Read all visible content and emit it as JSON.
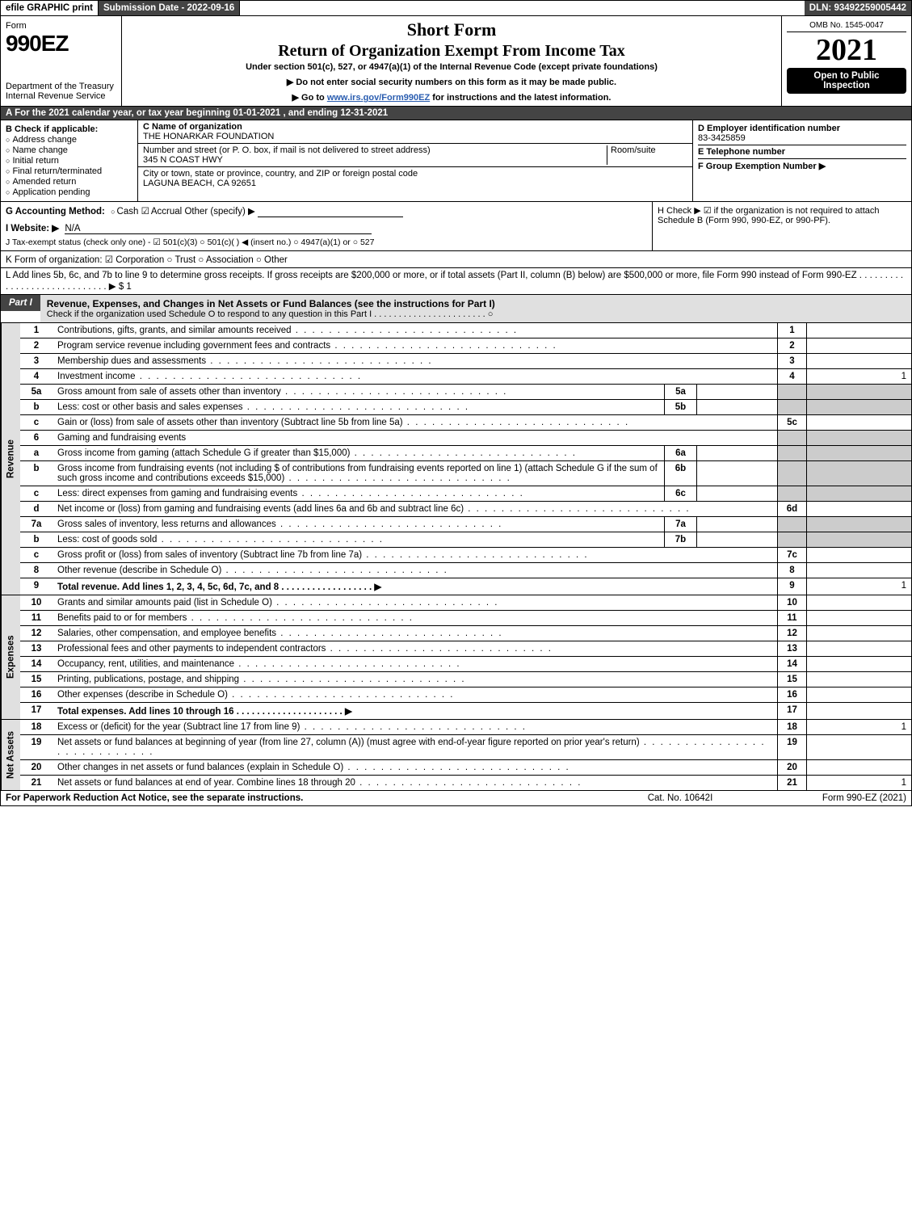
{
  "topbar": {
    "efile": "efile GRAPHIC print",
    "submission": "Submission Date - 2022-09-16",
    "dln": "DLN: 93492259005442"
  },
  "header": {
    "form_label": "Form",
    "form_number": "990EZ",
    "dept": "Department of the Treasury\nInternal Revenue Service",
    "short_form": "Short Form",
    "title": "Return of Organization Exempt From Income Tax",
    "subtitle": "Under section 501(c), 527, or 4947(a)(1) of the Internal Revenue Code (except private foundations)",
    "instr1": "▶ Do not enter social security numbers on this form as it may be made public.",
    "instr2_pre": "▶ Go to ",
    "instr2_link": "www.irs.gov/Form990EZ",
    "instr2_post": " for instructions and the latest information.",
    "omb": "OMB No. 1545-0047",
    "year": "2021",
    "open": "Open to Public Inspection"
  },
  "A": "A  For the 2021 calendar year, or tax year beginning 01-01-2021  , and ending 12-31-2021",
  "B": {
    "label": "B  Check if applicable:",
    "items": [
      "Address change",
      "Name change",
      "Initial return",
      "Final return/terminated",
      "Amended return",
      "Application pending"
    ]
  },
  "C": {
    "name_label": "C Name of organization",
    "name": "THE HONARKAR FOUNDATION",
    "street_label": "Number and street (or P. O. box, if mail is not delivered to street address)",
    "room_label": "Room/suite",
    "street": "345 N COAST HWY",
    "city_label": "City or town, state or province, country, and ZIP or foreign postal code",
    "city": "LAGUNA BEACH, CA  92651"
  },
  "D": {
    "label": "D Employer identification number",
    "value": "83-3425859"
  },
  "E": {
    "label": "E Telephone number",
    "value": ""
  },
  "F": {
    "label": "F Group Exemption Number  ▶",
    "value": ""
  },
  "G": {
    "label": "G Accounting Method:",
    "cash": "Cash",
    "accrual": "Accrual",
    "other": "Other (specify) ▶"
  },
  "H": {
    "label": "H  Check ▶ ☑ if the organization is not required to attach Schedule B (Form 990, 990-EZ, or 990-PF)."
  },
  "I": {
    "label": "I Website: ▶",
    "value": "N/A"
  },
  "J": {
    "label": "J Tax-exempt status (check only one) - ☑ 501(c)(3) ○ 501(c)(  ) ◀ (insert no.) ○ 4947(a)(1) or ○ 527"
  },
  "K": {
    "label": "K Form of organization:  ☑ Corporation  ○ Trust  ○ Association  ○ Other"
  },
  "L": {
    "label": "L Add lines 5b, 6c, and 7b to line 9 to determine gross receipts. If gross receipts are $200,000 or more, or if total assets (Part II, column (B) below) are $500,000 or more, file Form 990 instead of Form 990-EZ . . . . . . . . . . . . . . . . . . . . . . . . . . . . . ▶ $ 1"
  },
  "part1": {
    "tab": "Part I",
    "title": "Revenue, Expenses, and Changes in Net Assets or Fund Balances (see the instructions for Part I)",
    "sub": "Check if the organization used Schedule O to respond to any question in this Part I . . . . . . . . . . . . . . . . . . . . . . . ○"
  },
  "vlabels": {
    "rev": "Revenue",
    "exp": "Expenses",
    "na": "Net Assets"
  },
  "lines": {
    "1": {
      "n": "1",
      "d": "Contributions, gifts, grants, and similar amounts received",
      "box": "1",
      "v": ""
    },
    "2": {
      "n": "2",
      "d": "Program service revenue including government fees and contracts",
      "box": "2",
      "v": ""
    },
    "3": {
      "n": "3",
      "d": "Membership dues and assessments",
      "box": "3",
      "v": ""
    },
    "4": {
      "n": "4",
      "d": "Investment income",
      "box": "4",
      "v": "1"
    },
    "5a": {
      "n": "5a",
      "d": "Gross amount from sale of assets other than inventory",
      "ib": "5a"
    },
    "5b": {
      "n": "b",
      "d": "Less: cost or other basis and sales expenses",
      "ib": "5b"
    },
    "5c": {
      "n": "c",
      "d": "Gain or (loss) from sale of assets other than inventory (Subtract line 5b from line 5a)",
      "box": "5c",
      "v": ""
    },
    "6": {
      "n": "6",
      "d": "Gaming and fundraising events"
    },
    "6a": {
      "n": "a",
      "d": "Gross income from gaming (attach Schedule G if greater than $15,000)",
      "ib": "6a"
    },
    "6b": {
      "n": "b",
      "d": "Gross income from fundraising events (not including $               of contributions from fundraising events reported on line 1) (attach Schedule G if the sum of such gross income and contributions exceeds $15,000)",
      "ib": "6b"
    },
    "6c": {
      "n": "c",
      "d": "Less: direct expenses from gaming and fundraising events",
      "ib": "6c"
    },
    "6d": {
      "n": "d",
      "d": "Net income or (loss) from gaming and fundraising events (add lines 6a and 6b and subtract line 6c)",
      "box": "6d",
      "v": ""
    },
    "7a": {
      "n": "7a",
      "d": "Gross sales of inventory, less returns and allowances",
      "ib": "7a"
    },
    "7b": {
      "n": "b",
      "d": "Less: cost of goods sold",
      "ib": "7b"
    },
    "7c": {
      "n": "c",
      "d": "Gross profit or (loss) from sales of inventory (Subtract line 7b from line 7a)",
      "box": "7c",
      "v": ""
    },
    "8": {
      "n": "8",
      "d": "Other revenue (describe in Schedule O)",
      "box": "8",
      "v": ""
    },
    "9": {
      "n": "9",
      "d": "Total revenue. Add lines 1, 2, 3, 4, 5c, 6d, 7c, and 8  . . . . . . . . . . . . . . . . . . ▶",
      "box": "9",
      "v": "1",
      "bold": true
    },
    "10": {
      "n": "10",
      "d": "Grants and similar amounts paid (list in Schedule O)",
      "box": "10",
      "v": ""
    },
    "11": {
      "n": "11",
      "d": "Benefits paid to or for members",
      "box": "11",
      "v": ""
    },
    "12": {
      "n": "12",
      "d": "Salaries, other compensation, and employee benefits",
      "box": "12",
      "v": ""
    },
    "13": {
      "n": "13",
      "d": "Professional fees and other payments to independent contractors",
      "box": "13",
      "v": ""
    },
    "14": {
      "n": "14",
      "d": "Occupancy, rent, utilities, and maintenance",
      "box": "14",
      "v": ""
    },
    "15": {
      "n": "15",
      "d": "Printing, publications, postage, and shipping",
      "box": "15",
      "v": ""
    },
    "16": {
      "n": "16",
      "d": "Other expenses (describe in Schedule O)",
      "box": "16",
      "v": ""
    },
    "17": {
      "n": "17",
      "d": "Total expenses. Add lines 10 through 16   . . . . . . . . . . . . . . . . . . . . . ▶",
      "box": "17",
      "v": "",
      "bold": true
    },
    "18": {
      "n": "18",
      "d": "Excess or (deficit) for the year (Subtract line 17 from line 9)",
      "box": "18",
      "v": "1"
    },
    "19": {
      "n": "19",
      "d": "Net assets or fund balances at beginning of year (from line 27, column (A)) (must agree with end-of-year figure reported on prior year's return)",
      "box": "19",
      "v": ""
    },
    "20": {
      "n": "20",
      "d": "Other changes in net assets or fund balances (explain in Schedule O)",
      "box": "20",
      "v": ""
    },
    "21": {
      "n": "21",
      "d": "Net assets or fund balances at end of year. Combine lines 18 through 20",
      "box": "21",
      "v": "1"
    }
  },
  "footer": {
    "l": "For Paperwork Reduction Act Notice, see the separate instructions.",
    "m": "Cat. No. 10642I",
    "r": "Form 990-EZ (2021)"
  }
}
